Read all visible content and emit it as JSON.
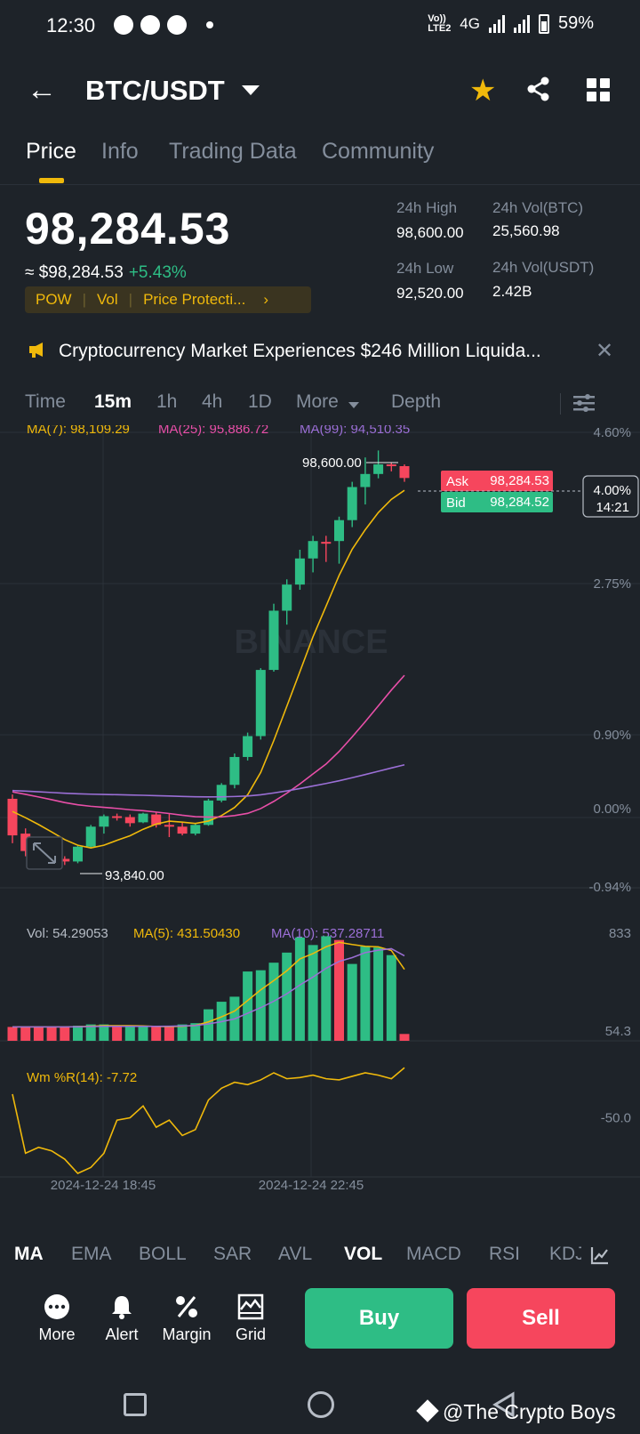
{
  "status_bar": {
    "time": "12:30",
    "network": "4G",
    "lte": "Vo)) LTE2",
    "battery": "59%"
  },
  "header": {
    "pair": "BTC/USDT"
  },
  "tabs": [
    {
      "label": "Price"
    },
    {
      "label": "Info"
    },
    {
      "label": "Trading Data"
    },
    {
      "label": "Community"
    }
  ],
  "price": {
    "last": "98,284.53",
    "approx": "≈ $98,284.53",
    "change": "+5.43%",
    "tags": [
      "POW",
      "Vol",
      "Price Protecti..."
    ],
    "high_label": "24h High",
    "high": "98,600.00",
    "low_label": "24h Low",
    "low": "92,520.00",
    "vol_btc_label": "24h Vol(BTC)",
    "vol_btc": "25,560.98",
    "vol_usdt_label": "24h Vol(USDT)",
    "vol_usdt": "2.42B"
  },
  "news": {
    "text": "Cryptocurrency Market Experiences $246 Million Liquida..."
  },
  "intervals": [
    {
      "label": "Time"
    },
    {
      "label": "15m"
    },
    {
      "label": "1h"
    },
    {
      "label": "4h"
    },
    {
      "label": "1D"
    },
    {
      "label": "More"
    },
    {
      "label": "Depth"
    }
  ],
  "chart": {
    "ma_legend": [
      {
        "label": "MA(7): 98,109.29",
        "color": "#f0b90b"
      },
      {
        "label": "MA(25): 95,886.72",
        "color": "#e84fa8"
      },
      {
        "label": "MA(99): 94,510.35",
        "color": "#9b6fd6"
      }
    ],
    "watermark": "BINANCE",
    "high_marker": "98,600.00",
    "low_marker": "93,840.00",
    "ask_label": "Ask",
    "ask": "98,284.53",
    "bid_label": "Bid",
    "bid": "98,284.52",
    "current_pct": "4.00%",
    "countdown": "14:21",
    "vol_legend": [
      {
        "label": "Vol: 54.29053",
        "color": "#b7bdc6"
      },
      {
        "label": "MA(5): 431.50430",
        "color": "#f0b90b"
      },
      {
        "label": "MA(10): 537.28711",
        "color": "#9b6fd6"
      }
    ],
    "wr_legend": "Wm %R(14): -7.72",
    "time_labels": [
      "2024-12-24 18:45",
      "2024-12-24 22:45"
    ]
  },
  "chart_data": [
    {
      "type": "candlestick",
      "title": "BTC/USDT 15m",
      "y_axis_labels": [
        "4.60%",
        "2.75%",
        "0.90%",
        "0.00%",
        "-0.94%"
      ],
      "x_labels": [
        "2024-12-24 18:45",
        "2024-12-24 22:45"
      ],
      "ylim": [
        93680,
        98890
      ],
      "candles": [
        [
          94600,
          94650,
          94090,
          94180
        ],
        [
          94200,
          94260,
          93940,
          94000
        ],
        [
          94000,
          94080,
          93870,
          93950
        ],
        [
          93950,
          94020,
          93890,
          93910
        ],
        [
          93910,
          93940,
          93840,
          93880
        ],
        [
          93880,
          94060,
          93860,
          94050
        ],
        [
          94050,
          94300,
          94030,
          94280
        ],
        [
          94280,
          94420,
          94200,
          94400
        ],
        [
          94400,
          94430,
          94350,
          94390
        ],
        [
          94390,
          94420,
          94280,
          94320
        ],
        [
          94330,
          94440,
          94320,
          94430
        ],
        [
          94420,
          94450,
          94270,
          94300
        ],
        [
          94300,
          94430,
          94160,
          94280
        ],
        [
          94280,
          94330,
          94180,
          94200
        ],
        [
          94200,
          94320,
          94180,
          94300
        ],
        [
          94300,
          94600,
          94290,
          94580
        ],
        [
          94580,
          94780,
          94560,
          94760
        ],
        [
          94760,
          95120,
          94720,
          95080
        ],
        [
          95080,
          95360,
          95040,
          95320
        ],
        [
          95320,
          96100,
          95280,
          96080
        ],
        [
          96080,
          96840,
          96060,
          96760
        ],
        [
          96760,
          97120,
          96600,
          97060
        ],
        [
          97060,
          97460,
          97000,
          97360
        ],
        [
          97360,
          97620,
          97200,
          97560
        ],
        [
          97550,
          97620,
          97320,
          97540
        ],
        [
          97560,
          97840,
          97300,
          97800
        ],
        [
          97800,
          98240,
          97720,
          98180
        ],
        [
          98180,
          98520,
          97980,
          98330
        ],
        [
          98330,
          98600,
          98280,
          98440
        ],
        [
          98440,
          98460,
          98360,
          98420
        ],
        [
          98420,
          98440,
          98240,
          98284
        ]
      ],
      "series": [
        {
          "name": "MA(7)",
          "last": 98109.29
        },
        {
          "name": "MA(25)",
          "last": 95886.72
        },
        {
          "name": "MA(99)",
          "last": 94510.35
        }
      ],
      "high": 98600.0,
      "low": 93840.0,
      "ask": 98284.53,
      "bid": 98284.52
    },
    {
      "type": "bar",
      "title": "Volume",
      "y_axis_labels": [
        "833",
        "54.3"
      ],
      "ylim": [
        54.3,
        833
      ],
      "values": [
        110,
        110,
        110,
        110,
        110,
        120,
        130,
        130,
        110,
        110,
        110,
        110,
        120,
        130,
        140,
        250,
        310,
        350,
        550,
        560,
        620,
        700,
        820,
        760,
        830,
        800,
        610,
        750,
        740,
        680,
        54.29
      ],
      "up": [
        false,
        false,
        false,
        false,
        false,
        true,
        true,
        true,
        false,
        true,
        true,
        false,
        false,
        true,
        true,
        true,
        true,
        true,
        true,
        true,
        true,
        true,
        true,
        true,
        true,
        false,
        true,
        true,
        true,
        true,
        false
      ],
      "series": [
        {
          "name": "MA(5)",
          "last": 431.5043
        },
        {
          "name": "MA(10)",
          "last": 537.28711
        }
      ]
    },
    {
      "type": "line",
      "title": "Wm %R(14)",
      "y_axis_labels": [
        "-50.0"
      ],
      "ylim": [
        -100,
        0
      ],
      "values": [
        -30,
        -80,
        -75,
        -78,
        -85,
        -97,
        -92,
        -80,
        -52,
        -50,
        -40,
        -58,
        -52,
        -65,
        -60,
        -35,
        -25,
        -20,
        -22,
        -18,
        -12,
        -17,
        -16,
        -14,
        -17,
        -18,
        -15,
        -12,
        -14,
        -17,
        -7.72
      ]
    }
  ],
  "indicator_tabs": [
    {
      "label": "MA"
    },
    {
      "label": "EMA"
    },
    {
      "label": "BOLL"
    },
    {
      "label": "SAR"
    },
    {
      "label": "AVL"
    },
    {
      "label": "VOL"
    },
    {
      "label": "MACD"
    },
    {
      "label": "RSI"
    },
    {
      "label": "KDJ"
    }
  ],
  "bottom_bar": {
    "more": "More",
    "alert": "Alert",
    "margin": "Margin",
    "grid": "Grid",
    "buy": "Buy",
    "sell": "Sell"
  },
  "watermark_text": "@The Crypto Boys",
  "colors": {
    "up": "#2ebd85",
    "down": "#f6465d",
    "accent": "#f0b90b",
    "bg": "#1e2329"
  }
}
